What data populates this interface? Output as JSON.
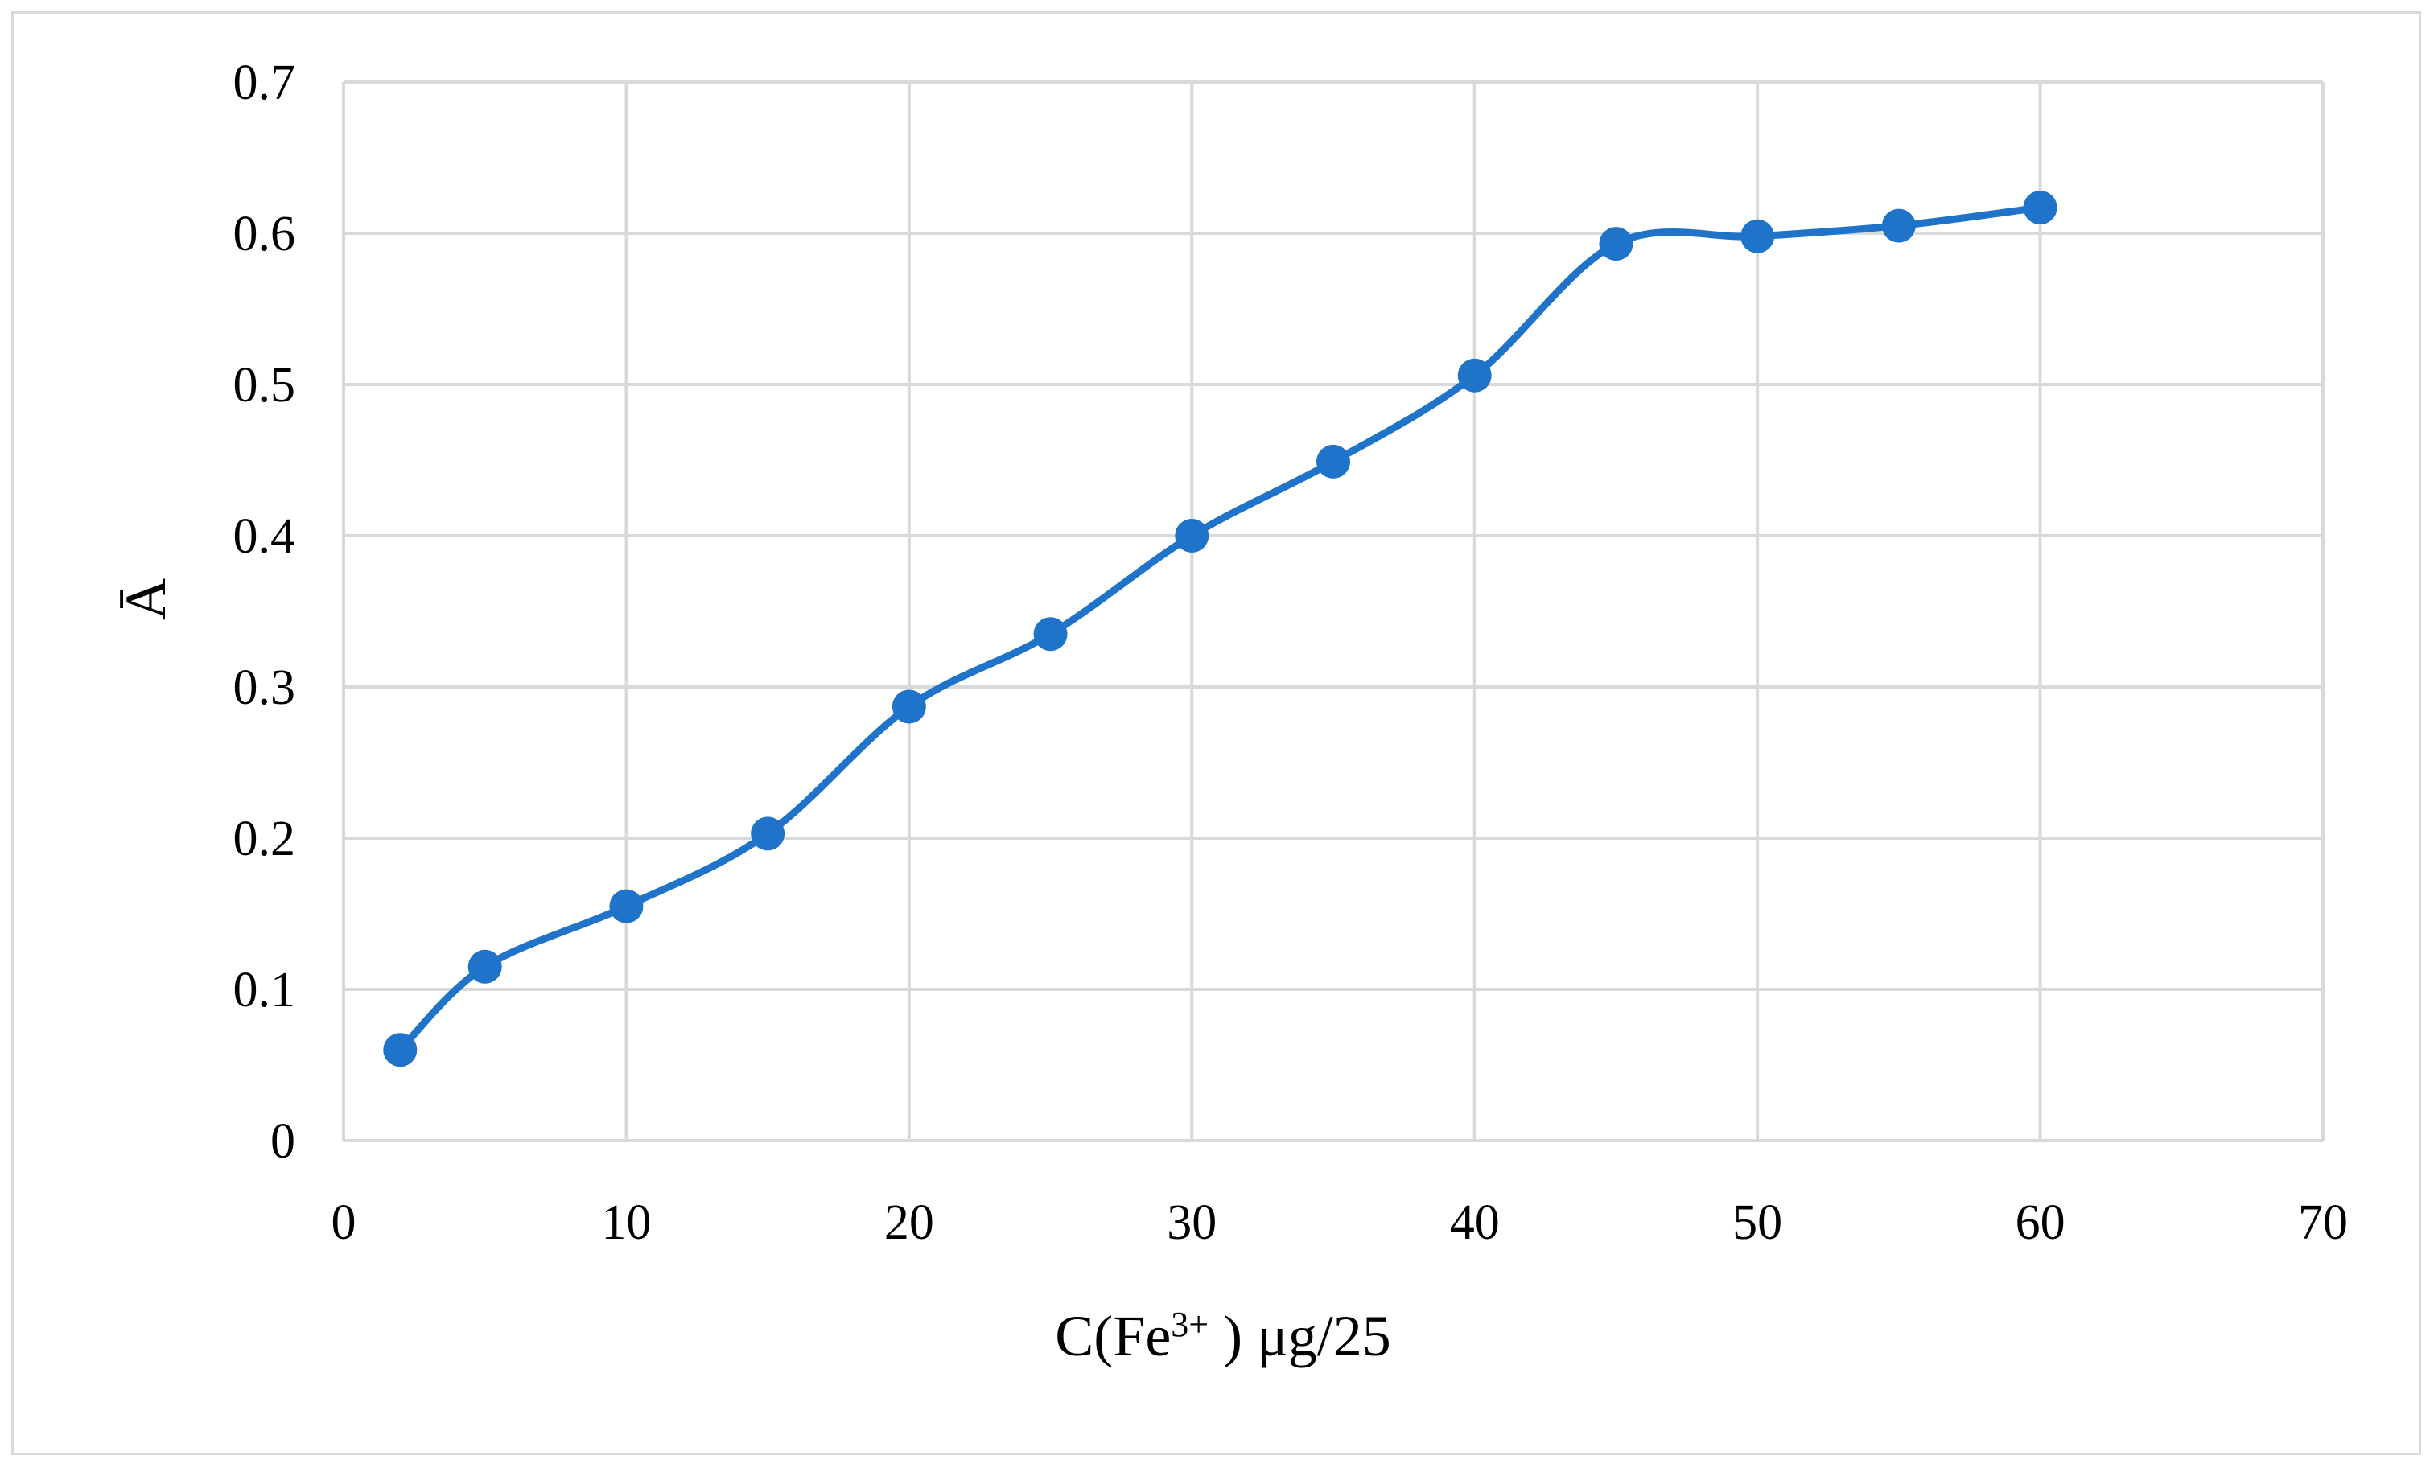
{
  "chart_data": {
    "type": "line",
    "title": "",
    "xlabel": "C(Fe³⁺ ) μg/25",
    "xlabel_parts": {
      "base": "C(Fe",
      "sup": "3+",
      "tail": " ) μg/25"
    },
    "ylabel": "Ā",
    "xlim": [
      0,
      70
    ],
    "ylim": [
      0,
      0.7
    ],
    "x_ticks": [
      "0",
      "10",
      "20",
      "30",
      "40",
      "50",
      "60",
      "70"
    ],
    "y_ticks": [
      "0",
      "0.1",
      "0.2",
      "0.3",
      "0.4",
      "0.5",
      "0.6",
      "0.7"
    ],
    "grid": true,
    "smooth": true,
    "series": [
      {
        "color": "#1f74c9",
        "marker": "circle",
        "x": [
          2,
          5,
          10,
          15,
          20,
          25,
          30,
          35,
          40,
          45,
          50,
          55,
          60
        ],
        "y": [
          0.06,
          0.115,
          0.155,
          0.203,
          0.287,
          0.335,
          0.4,
          0.449,
          0.506,
          0.593,
          0.598,
          0.605,
          0.617
        ]
      }
    ]
  },
  "colors": {
    "grid": "#d9d9d9",
    "border": "#d9d9d9",
    "series": "#1f74c9"
  }
}
